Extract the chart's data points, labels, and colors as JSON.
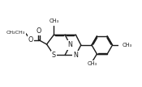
{
  "bg_color": "#ffffff",
  "line_color": "#1a1a1a",
  "lw": 1.0,
  "figsize": [
    1.75,
    1.08
  ],
  "dpi": 100,
  "xlim": [
    -0.15,
    1.05
  ],
  "ylim": [
    -0.05,
    1.05
  ]
}
